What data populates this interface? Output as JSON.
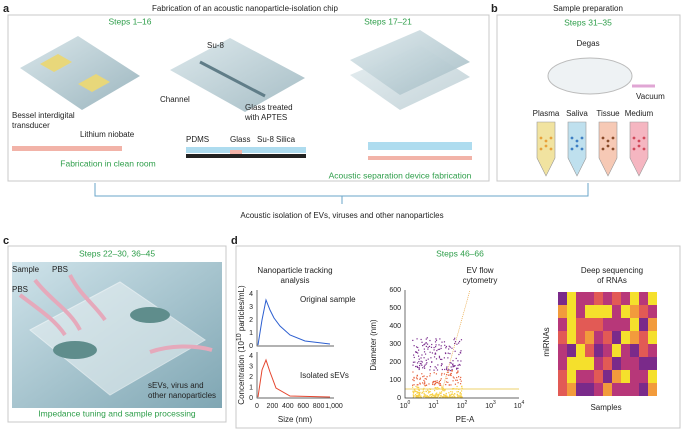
{
  "a": {
    "label": "a",
    "title": "Fabrication of an acoustic nanoparticle-isolation chip",
    "steps": [
      "Steps 1–16",
      "Steps 17–21"
    ],
    "transducer": [
      "Bessel interdigital",
      "transducer"
    ],
    "substrate": "Lithium niobate",
    "su8": "Su-8",
    "channel": "Channel",
    "glass": [
      "Glass treated",
      "with APTES"
    ],
    "layers": [
      "PDMS",
      "Glass",
      "Su-8",
      "Silica"
    ],
    "footers": [
      "Fabrication in clean room",
      "Acoustic separation device fabrication"
    ]
  },
  "b": {
    "label": "b",
    "title": "Sample preparation",
    "steps": "Steps 31–35",
    "degas": "Degas",
    "vacuum": "Vacuum",
    "samples": [
      "Plasma",
      "Saliva",
      "Tissue",
      "Medium"
    ]
  },
  "link": "Acoustic isolation of EVs, viruses and other nanoparticles",
  "c": {
    "label": "c",
    "steps": "Steps 22–30, 36–45",
    "inlets": [
      "Sample",
      "PBS",
      "PBS"
    ],
    "outlet": [
      "sEVs, virus and",
      "other nanoparticles"
    ],
    "footer": "Impedance tuning and sample processing"
  },
  "d": {
    "label": "d",
    "steps": "Steps 46–66",
    "nta": {
      "title": [
        "Nanoparticle tracking",
        "analysis"
      ],
      "ylabel": [
        "Concentration (10",
        "10",
        " particles/mL)"
      ],
      "xlabel": "Size (nm)",
      "xticks": [
        "0",
        "200",
        "400",
        "600",
        "800",
        "1,000"
      ],
      "yticks": [
        "0",
        "1",
        "2",
        "3",
        "4"
      ],
      "traces": [
        "Original sample",
        "Isolated sEVs"
      ]
    },
    "flow": {
      "title": [
        "EV flow",
        "cytometry"
      ],
      "ylabel": "Diameter (nm)",
      "yticks": [
        "0",
        "100",
        "200",
        "300",
        "400",
        "500",
        "600"
      ],
      "xticks": [
        {
          "base": "10",
          "exp": "0"
        },
        {
          "base": "10",
          "exp": "1"
        },
        {
          "base": "10",
          "exp": "2"
        },
        {
          "base": "10",
          "exp": "3"
        },
        {
          "base": "10",
          "exp": "4"
        }
      ],
      "xlabel": "PE-A"
    },
    "seq": {
      "title": [
        "Deep sequencing",
        "of RNAs"
      ],
      "ylabel": "miRNAs",
      "xlabel": "Samples"
    }
  }
}
